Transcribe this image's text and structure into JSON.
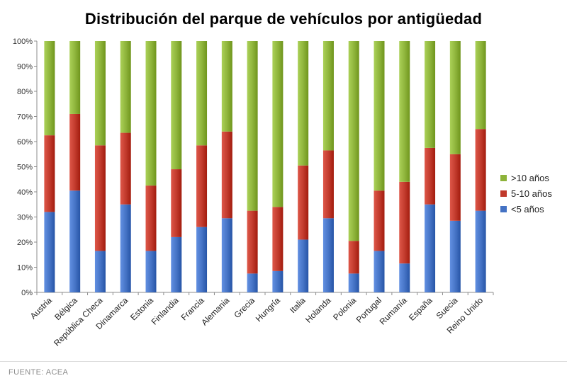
{
  "chart_data": {
    "type": "bar",
    "stacked": true,
    "title": "Distribución del parque de vehículos por antigüedad",
    "xlabel": "",
    "ylabel": "",
    "ylim": [
      0,
      100
    ],
    "yticks": [
      "0%",
      "10%",
      "20%",
      "30%",
      "40%",
      "50%",
      "60%",
      "70%",
      "80%",
      "90%",
      "100%"
    ],
    "grid": false,
    "legend_position": "right",
    "categories": [
      "Austria",
      "Bélgica",
      "República Checa",
      "Dinamarca",
      "Estonia",
      "Finlandia",
      "Francia",
      "Alemania",
      "Grecia",
      "Hungría",
      "Italia",
      "Holanda",
      "Polonia",
      "Portugal",
      "Rumanía",
      "España",
      "Suecia",
      "Reino Unido"
    ],
    "series": [
      {
        "name": "<5 años",
        "color": "#4472c4",
        "values": [
          32,
          40.5,
          16.5,
          35,
          16.5,
          22,
          26,
          29.5,
          7.5,
          8.5,
          21,
          29.5,
          7.5,
          16.5,
          11.5,
          35,
          28.5,
          32.5
        ]
      },
      {
        "name": "5-10 años",
        "color": "#c0392b",
        "values": [
          30.5,
          30.5,
          42,
          28.5,
          26,
          27,
          32.5,
          34.5,
          25,
          25.5,
          29.5,
          27,
          13,
          24,
          32.5,
          22.5,
          26.5,
          32.5
        ]
      },
      {
        "name": ">10 años",
        "color": "#8db33a",
        "values": [
          37.5,
          29,
          41.5,
          36.5,
          57.5,
          51,
          41.5,
          36,
          67.5,
          66,
          49.5,
          43.5,
          79.5,
          59.5,
          56,
          42.5,
          45,
          35
        ]
      }
    ]
  },
  "legend": {
    "items": [
      {
        "label": ">10 años",
        "color": "#8db33a"
      },
      {
        "label": "5-10 años",
        "color": "#c0392b"
      },
      {
        "label": "<5 años",
        "color": "#4472c4"
      }
    ]
  },
  "source": "FUENTE: ACEA"
}
